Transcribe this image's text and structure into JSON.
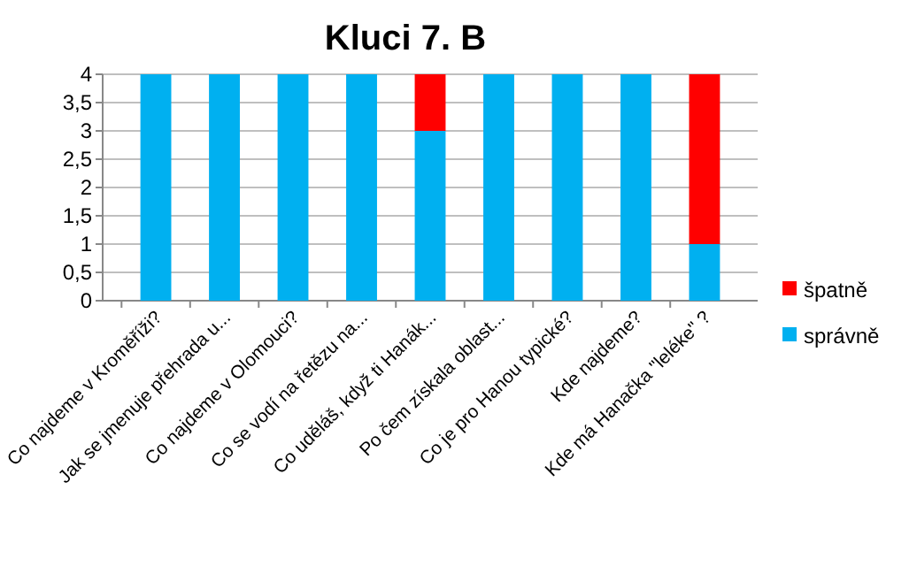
{
  "chart_data": {
    "type": "bar",
    "title": "Kluci 7. B",
    "stacked": true,
    "categories": [
      "Co najdeme v Kroměříži?",
      "Jak se jmenuje přehrada u...",
      "Co najdeme v Olomouci?",
      "Co se vodí na řetězu na...",
      "Co uděláš, když ti Hanák...",
      "Po čem získala oblast...",
      "Co je pro Hanou typické?",
      "Kde najdeme?",
      "Kde má Hanačka \"leléke\" ?"
    ],
    "series": [
      {
        "name": "správně",
        "color": "#00b0f0",
        "values": [
          4,
          4,
          4,
          4,
          3,
          4,
          4,
          4,
          1
        ]
      },
      {
        "name": "špatně",
        "color": "#ff0000",
        "values": [
          0,
          0,
          0,
          0,
          1,
          0,
          0,
          0,
          3
        ]
      }
    ],
    "ylim": [
      0,
      4
    ],
    "yticks": [
      0,
      {
        "value": 0.5,
        "label": "0,5"
      },
      1,
      {
        "value": 1.5,
        "label": "1,5"
      },
      2,
      {
        "value": 2.5,
        "label": "2,5"
      },
      3,
      {
        "value": 3.5,
        "label": "3,5"
      },
      4
    ],
    "grid": "y",
    "legend": "right"
  }
}
